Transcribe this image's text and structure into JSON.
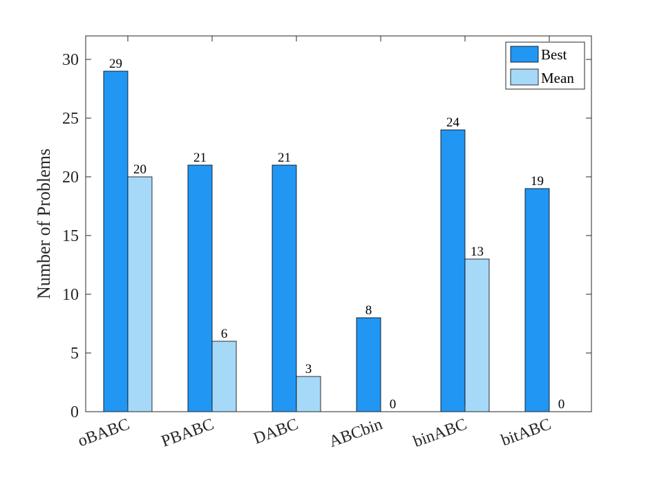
{
  "chart_data": {
    "type": "bar",
    "categories": [
      "oBABC",
      "PBABC",
      "DABC",
      "ABCbin",
      "binABC",
      "bitABC"
    ],
    "series": [
      {
        "name": "Best",
        "values": [
          29,
          21,
          21,
          8,
          24,
          19
        ],
        "color": "#2196F3"
      },
      {
        "name": "Mean",
        "values": [
          20,
          6,
          3,
          0,
          13,
          0
        ],
        "color": "#A6D8F8"
      }
    ],
    "title": "",
    "xlabel": "",
    "ylabel": "Number of Problems",
    "ylim": [
      0,
      32
    ],
    "yticks": [
      0,
      5,
      10,
      15,
      20,
      25,
      30
    ],
    "grid": false,
    "legend_position": "top-right",
    "data_labels": true
  }
}
